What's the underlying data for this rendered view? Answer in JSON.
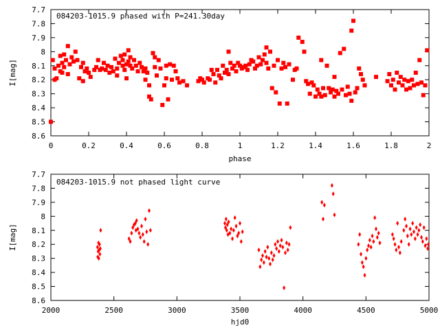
{
  "chart_data": [
    {
      "type": "scatter",
      "title": "084203-1015.9 phased with P=241.30day",
      "xlabel": "phase",
      "ylabel": "I[mag]",
      "xlim": [
        0,
        2
      ],
      "ylim": [
        8.6,
        7.7
      ],
      "y_inverted": true,
      "grid": false,
      "marker_color": "#ff0000",
      "marker_shape": "square",
      "x_ticks": [
        "0",
        "0.2",
        "0.4",
        "0.6",
        "0.8",
        "1",
        "1.2",
        "1.4",
        "1.6",
        "1.8",
        "2"
      ],
      "x_tick_values": [
        0,
        0.2,
        0.4,
        0.6,
        0.8,
        1.0,
        1.2,
        1.4,
        1.6,
        1.8,
        2.0
      ],
      "y_ticks": [
        "7.7",
        "7.8",
        "7.9",
        "8",
        "8.1",
        "8.2",
        "8.3",
        "8.4",
        "8.5",
        "8.6"
      ],
      "y_tick_values": [
        7.7,
        7.8,
        7.9,
        8.0,
        8.1,
        8.2,
        8.3,
        8.4,
        8.5,
        8.6
      ],
      "points": [
        [
          0.0,
          8.5
        ],
        [
          0.01,
          8.06
        ],
        [
          0.02,
          8.12
        ],
        [
          0.02,
          8.2
        ],
        [
          0.03,
          8.19
        ],
        [
          0.04,
          8.1
        ],
        [
          0.05,
          8.03
        ],
        [
          0.05,
          8.14
        ],
        [
          0.06,
          8.08
        ],
        [
          0.06,
          8.15
        ],
        [
          0.07,
          8.02
        ],
        [
          0.07,
          8.11
        ],
        [
          0.08,
          8.06
        ],
        [
          0.09,
          8.16
        ],
        [
          0.09,
          7.96
        ],
        [
          0.1,
          8.09
        ],
        [
          0.11,
          8.04
        ],
        [
          0.12,
          8.07
        ],
        [
          0.13,
          8.0
        ],
        [
          0.14,
          8.06
        ],
        [
          0.15,
          8.19
        ],
        [
          0.16,
          8.11
        ],
        [
          0.17,
          8.08
        ],
        [
          0.17,
          8.21
        ],
        [
          0.18,
          8.14
        ],
        [
          0.19,
          8.12
        ],
        [
          0.2,
          8.15
        ],
        [
          0.21,
          8.18
        ],
        [
          0.23,
          8.13
        ],
        [
          0.24,
          8.11
        ],
        [
          0.25,
          8.06
        ],
        [
          0.26,
          8.13
        ],
        [
          0.27,
          8.12
        ],
        [
          0.28,
          8.08
        ],
        [
          0.29,
          8.13
        ],
        [
          0.3,
          8.1
        ],
        [
          0.31,
          8.15
        ],
        [
          0.32,
          8.11
        ],
        [
          0.33,
          8.14
        ],
        [
          0.34,
          8.05
        ],
        [
          0.35,
          8.12
        ],
        [
          0.35,
          8.17
        ],
        [
          0.36,
          8.08
        ],
        [
          0.37,
          8.03
        ],
        [
          0.38,
          8.1
        ],
        [
          0.38,
          8.06
        ],
        [
          0.39,
          8.13
        ],
        [
          0.39,
          8.02
        ],
        [
          0.4,
          8.09
        ],
        [
          0.4,
          8.19
        ],
        [
          0.41,
          8.07
        ],
        [
          0.41,
          7.99
        ],
        [
          0.42,
          8.1
        ],
        [
          0.42,
          8.04
        ],
        [
          0.43,
          8.12
        ],
        [
          0.44,
          8.06
        ],
        [
          0.45,
          8.1
        ],
        [
          0.46,
          8.14
        ],
        [
          0.47,
          8.08
        ],
        [
          0.48,
          8.11
        ],
        [
          0.49,
          8.14
        ],
        [
          0.5,
          8.12
        ],
        [
          0.5,
          8.2
        ],
        [
          0.51,
          8.15
        ],
        [
          0.52,
          8.24
        ],
        [
          0.52,
          8.32
        ],
        [
          0.53,
          8.34
        ],
        [
          0.54,
          8.01
        ],
        [
          0.55,
          8.04
        ],
        [
          0.55,
          8.11
        ],
        [
          0.56,
          8.17
        ],
        [
          0.57,
          8.06
        ],
        [
          0.58,
          8.12
        ],
        [
          0.59,
          8.38
        ],
        [
          0.6,
          8.24
        ],
        [
          0.61,
          8.1
        ],
        [
          0.61,
          8.19
        ],
        [
          0.62,
          8.34
        ],
        [
          0.63,
          8.09
        ],
        [
          0.64,
          8.2
        ],
        [
          0.65,
          8.1
        ],
        [
          0.66,
          8.14
        ],
        [
          0.67,
          8.19
        ],
        [
          0.68,
          8.22
        ],
        [
          0.7,
          8.21
        ],
        [
          0.72,
          8.24
        ],
        [
          0.78,
          8.21
        ],
        [
          0.79,
          8.19
        ],
        [
          0.8,
          8.2
        ],
        [
          0.81,
          8.22
        ],
        [
          0.83,
          8.19
        ],
        [
          0.84,
          8.2
        ],
        [
          0.85,
          8.13
        ],
        [
          0.86,
          8.16
        ],
        [
          0.87,
          8.22
        ],
        [
          0.88,
          8.13
        ],
        [
          0.89,
          8.17
        ],
        [
          0.9,
          8.19
        ],
        [
          0.91,
          8.1
        ],
        [
          0.92,
          8.15
        ],
        [
          0.93,
          8.13
        ],
        [
          0.94,
          8.16
        ],
        [
          0.94,
          8.0
        ],
        [
          0.95,
          8.08
        ],
        [
          0.96,
          8.12
        ],
        [
          0.97,
          8.1
        ],
        [
          0.98,
          8.14
        ],
        [
          0.99,
          8.08
        ],
        [
          1.0,
          8.1
        ],
        [
          1.01,
          8.12
        ],
        [
          1.02,
          8.11
        ],
        [
          1.03,
          8.1
        ],
        [
          1.04,
          8.13
        ],
        [
          1.05,
          8.09
        ],
        [
          1.06,
          8.06
        ],
        [
          1.07,
          8.07
        ],
        [
          1.08,
          8.12
        ],
        [
          1.09,
          8.1
        ],
        [
          1.1,
          8.04
        ],
        [
          1.11,
          8.09
        ],
        [
          1.12,
          8.06
        ],
        [
          1.13,
          8.02
        ],
        [
          1.14,
          7.97
        ],
        [
          1.14,
          8.08
        ],
        [
          1.15,
          8.12
        ],
        [
          1.16,
          8.0
        ],
        [
          1.17,
          8.26
        ],
        [
          1.18,
          8.1
        ],
        [
          1.19,
          8.29
        ],
        [
          1.2,
          8.06
        ],
        [
          1.21,
          8.37
        ],
        [
          1.22,
          8.12
        ],
        [
          1.23,
          8.08
        ],
        [
          1.24,
          8.11
        ],
        [
          1.25,
          8.37
        ],
        [
          1.26,
          8.09
        ],
        [
          1.28,
          8.2
        ],
        [
          1.29,
          8.13
        ],
        [
          1.3,
          8.12
        ],
        [
          1.31,
          7.9
        ],
        [
          1.33,
          7.93
        ],
        [
          1.34,
          8.0
        ],
        [
          1.35,
          8.21
        ],
        [
          1.36,
          8.23
        ],
        [
          1.37,
          8.3
        ],
        [
          1.38,
          8.22
        ],
        [
          1.39,
          8.24
        ],
        [
          1.4,
          8.32
        ],
        [
          1.41,
          8.27
        ],
        [
          1.42,
          8.3
        ],
        [
          1.43,
          8.32
        ],
        [
          1.43,
          8.06
        ],
        [
          1.44,
          8.26
        ],
        [
          1.45,
          8.31
        ],
        [
          1.46,
          8.1
        ],
        [
          1.47,
          8.26
        ],
        [
          1.48,
          8.29
        ],
        [
          1.49,
          8.27
        ],
        [
          1.5,
          8.32
        ],
        [
          1.5,
          8.18
        ],
        [
          1.51,
          8.28
        ],
        [
          1.52,
          8.3
        ],
        [
          1.53,
          8.01
        ],
        [
          1.54,
          8.27
        ],
        [
          1.55,
          7.98
        ],
        [
          1.56,
          8.31
        ],
        [
          1.57,
          8.25
        ],
        [
          1.58,
          8.3
        ],
        [
          1.59,
          8.35
        ],
        [
          1.59,
          7.85
        ],
        [
          1.6,
          7.78
        ],
        [
          1.61,
          8.29
        ],
        [
          1.62,
          8.26
        ],
        [
          1.63,
          8.12
        ],
        [
          1.64,
          8.16
        ],
        [
          1.65,
          8.2
        ],
        [
          1.66,
          8.24
        ],
        [
          1.72,
          8.18
        ],
        [
          1.78,
          8.21
        ],
        [
          1.79,
          8.16
        ],
        [
          1.8,
          8.24
        ],
        [
          1.81,
          8.2
        ],
        [
          1.82,
          8.27
        ],
        [
          1.83,
          8.15
        ],
        [
          1.84,
          8.22
        ],
        [
          1.85,
          8.18
        ],
        [
          1.86,
          8.24
        ],
        [
          1.87,
          8.2
        ],
        [
          1.88,
          8.27
        ],
        [
          1.89,
          8.21
        ],
        [
          1.9,
          8.26
        ],
        [
          1.91,
          8.2
        ],
        [
          1.92,
          8.24
        ],
        [
          1.93,
          8.15
        ],
        [
          1.94,
          8.23
        ],
        [
          1.95,
          8.06
        ],
        [
          1.96,
          8.22
        ],
        [
          1.97,
          8.31
        ],
        [
          1.98,
          8.24
        ],
        [
          1.99,
          7.99
        ]
      ]
    },
    {
      "type": "scatter",
      "title": "084203-1015.9 not phased light curve",
      "xlabel": "hjd0",
      "ylabel": "I[mag]",
      "xlim": [
        2000,
        5000
      ],
      "ylim": [
        8.6,
        7.7
      ],
      "y_inverted": true,
      "grid": false,
      "marker_color": "#ff0000",
      "marker_shape": "diamond",
      "x_ticks": [
        "2000",
        "2500",
        "3000",
        "3500",
        "4000",
        "4500",
        "5000"
      ],
      "x_tick_values": [
        2000,
        2500,
        3000,
        3500,
        4000,
        4500,
        5000
      ],
      "y_ticks": [
        "7.7",
        "7.8",
        "7.9",
        "8",
        "8.1",
        "8.2",
        "8.3",
        "8.4",
        "8.5",
        "8.6"
      ],
      "y_tick_values": [
        7.7,
        7.8,
        7.9,
        8.0,
        8.1,
        8.2,
        8.3,
        8.4,
        8.5,
        8.6
      ],
      "points": [
        [
          2370,
          8.22
        ],
        [
          2372,
          8.29
        ],
        [
          2375,
          8.25
        ],
        [
          2378,
          8.19
        ],
        [
          2380,
          8.3
        ],
        [
          2383,
          8.24
        ],
        [
          2386,
          8.2
        ],
        [
          2389,
          8.27
        ],
        [
          2392,
          8.23
        ],
        [
          2395,
          8.1
        ],
        [
          2620,
          8.16
        ],
        [
          2630,
          8.18
        ],
        [
          2640,
          8.12
        ],
        [
          2650,
          8.08
        ],
        [
          2660,
          8.06
        ],
        [
          2670,
          8.05
        ],
        [
          2675,
          8.1
        ],
        [
          2680,
          8.03
        ],
        [
          2690,
          8.09
        ],
        [
          2700,
          8.12
        ],
        [
          2710,
          8.15
        ],
        [
          2720,
          8.07
        ],
        [
          2730,
          8.13
        ],
        [
          2740,
          8.18
        ],
        [
          2750,
          8.02
        ],
        [
          2760,
          8.11
        ],
        [
          2770,
          8.2
        ],
        [
          2780,
          7.96
        ],
        [
          2790,
          8.1
        ],
        [
          3380,
          8.05
        ],
        [
          3385,
          8.08
        ],
        [
          3390,
          8.02
        ],
        [
          3395,
          8.1
        ],
        [
          3400,
          8.06
        ],
        [
          3405,
          8.13
        ],
        [
          3410,
          8.04
        ],
        [
          3420,
          8.12
        ],
        [
          3430,
          8.09
        ],
        [
          3440,
          8.16
        ],
        [
          3450,
          8.1
        ],
        [
          3460,
          8.01
        ],
        [
          3470,
          8.07
        ],
        [
          3480,
          8.14
        ],
        [
          3490,
          8.12
        ],
        [
          3500,
          8.05
        ],
        [
          3510,
          8.18
        ],
        [
          3520,
          8.11
        ],
        [
          3650,
          8.24
        ],
        [
          3660,
          8.36
        ],
        [
          3670,
          8.31
        ],
        [
          3680,
          8.28
        ],
        [
          3690,
          8.33
        ],
        [
          3700,
          8.25
        ],
        [
          3710,
          8.29
        ],
        [
          3720,
          8.22
        ],
        [
          3730,
          8.3
        ],
        [
          3740,
          8.34
        ],
        [
          3750,
          8.26
        ],
        [
          3760,
          8.31
        ],
        [
          3770,
          8.28
        ],
        [
          3780,
          8.2
        ],
        [
          3790,
          8.23
        ],
        [
          3800,
          8.18
        ],
        [
          3810,
          8.25
        ],
        [
          3820,
          8.21
        ],
        [
          3830,
          8.17
        ],
        [
          3840,
          8.22
        ],
        [
          3850,
          8.51
        ],
        [
          3860,
          8.26
        ],
        [
          3870,
          8.19
        ],
        [
          3880,
          8.24
        ],
        [
          3890,
          8.2
        ],
        [
          3900,
          8.08
        ],
        [
          4150,
          7.9
        ],
        [
          4160,
          8.02
        ],
        [
          4170,
          7.92
        ],
        [
          4230,
          7.78
        ],
        [
          4240,
          7.84
        ],
        [
          4250,
          7.99
        ],
        [
          4440,
          8.2
        ],
        [
          4450,
          8.13
        ],
        [
          4460,
          8.27
        ],
        [
          4470,
          8.33
        ],
        [
          4480,
          8.36
        ],
        [
          4490,
          8.42
        ],
        [
          4500,
          8.3
        ],
        [
          4510,
          8.24
        ],
        [
          4520,
          8.21
        ],
        [
          4530,
          8.17
        ],
        [
          4540,
          8.22
        ],
        [
          4550,
          8.14
        ],
        [
          4560,
          8.18
        ],
        [
          4570,
          8.01
        ],
        [
          4580,
          8.09
        ],
        [
          4590,
          8.15
        ],
        [
          4600,
          8.12
        ],
        [
          4610,
          8.19
        ],
        [
          4710,
          8.13
        ],
        [
          4720,
          8.16
        ],
        [
          4730,
          8.2
        ],
        [
          4740,
          8.24
        ],
        [
          4750,
          8.05
        ],
        [
          4760,
          8.22
        ],
        [
          4770,
          8.26
        ],
        [
          4780,
          8.18
        ],
        [
          4800,
          8.1
        ],
        [
          4810,
          8.02
        ],
        [
          4820,
          8.07
        ],
        [
          4830,
          8.14
        ],
        [
          4840,
          8.2
        ],
        [
          4850,
          8.09
        ],
        [
          4860,
          8.13
        ],
        [
          4870,
          8.05
        ],
        [
          4880,
          8.11
        ],
        [
          4890,
          8.16
        ],
        [
          4900,
          8.08
        ],
        [
          4910,
          8.13
        ],
        [
          4920,
          8.1
        ],
        [
          4930,
          8.06
        ],
        [
          4940,
          8.15
        ],
        [
          4950,
          8.18
        ],
        [
          4960,
          8.08
        ],
        [
          4970,
          8.21
        ],
        [
          4980,
          8.16
        ],
        [
          4990,
          8.23
        ],
        [
          4995,
          8.2
        ]
      ]
    }
  ]
}
